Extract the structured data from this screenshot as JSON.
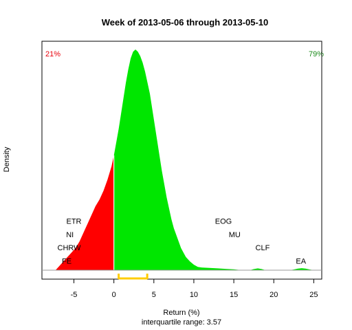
{
  "chart_data": {
    "type": "area",
    "title": "Week of 2013-05-06 through 2013-05-10",
    "xlabel": "Return (%)",
    "ylabel": "Density",
    "subtitle": "interquartile range: 3.57",
    "xlim": [
      -9,
      26
    ],
    "ylim": [
      0,
      1
    ],
    "xticks": [
      -5,
      0,
      5,
      10,
      15,
      20,
      25
    ],
    "xtick_labels": [
      "-5",
      "0",
      "5",
      "10",
      "15",
      "20",
      "25"
    ],
    "split_x": 0,
    "iqr": [
      0.6,
      4.17
    ],
    "grid": false,
    "colors": {
      "negative": "#ff0000",
      "positive": "#00e600",
      "iqr": "#ffcc00",
      "negative_text": "#e8000b",
      "positive_text": "#1a8a1a"
    },
    "percent_negative": "21%",
    "percent_positive": "79%",
    "density": {
      "x": [
        -7.3,
        -6.8,
        -6.3,
        -5.8,
        -5.3,
        -4.8,
        -4.3,
        -3.8,
        -3.3,
        -2.8,
        -2.3,
        -1.8,
        -1.3,
        -0.8,
        -0.3,
        0,
        0.3,
        0.6,
        0.9,
        1.2,
        1.5,
        1.8,
        2.1,
        2.4,
        2.7,
        3.0,
        3.3,
        3.6,
        3.9,
        4.2,
        4.5,
        4.8,
        5.1,
        5.4,
        5.7,
        6.0,
        6.3,
        6.6,
        6.9,
        7.2,
        7.5,
        7.8,
        8.1,
        8.4,
        8.7,
        9.0,
        9.5,
        10.0,
        10.5,
        11.0,
        12.0,
        13.0,
        14.0,
        15.0,
        15.5,
        16.0,
        17.0,
        17.5,
        18.0,
        18.5,
        19.0,
        20.0,
        21.0,
        22.0,
        22.5,
        23.0,
        23.5,
        24.0,
        24.5,
        25.0
      ],
      "y": [
        0.0,
        0.02,
        0.04,
        0.06,
        0.08,
        0.1,
        0.13,
        0.17,
        0.21,
        0.25,
        0.29,
        0.32,
        0.36,
        0.41,
        0.47,
        0.52,
        0.58,
        0.64,
        0.71,
        0.78,
        0.85,
        0.91,
        0.96,
        0.99,
        1.0,
        0.99,
        0.97,
        0.94,
        0.9,
        0.85,
        0.8,
        0.73,
        0.66,
        0.59,
        0.52,
        0.45,
        0.39,
        0.33,
        0.28,
        0.23,
        0.19,
        0.16,
        0.13,
        0.1,
        0.08,
        0.06,
        0.04,
        0.025,
        0.015,
        0.012,
        0.01,
        0.008,
        0.006,
        0.004,
        0.002,
        0.0,
        0.0,
        0.005,
        0.008,
        0.005,
        0.0,
        0.0,
        0.0,
        0.0,
        0.003,
        0.007,
        0.009,
        0.007,
        0.003,
        0.0
      ]
    },
    "annotations": [
      {
        "text": "ETR",
        "x": -5.0,
        "y": 0.21
      },
      {
        "text": "NI",
        "x": -5.5,
        "y": 0.15
      },
      {
        "text": "CHRW",
        "x": -5.6,
        "y": 0.09
      },
      {
        "text": "FE",
        "x": -5.9,
        "y": 0.03
      },
      {
        "text": "EOG",
        "x": 13.7,
        "y": 0.21
      },
      {
        "text": "MU",
        "x": 15.1,
        "y": 0.15
      },
      {
        "text": "CLF",
        "x": 18.6,
        "y": 0.09
      },
      {
        "text": "EA",
        "x": 23.4,
        "y": 0.03
      }
    ]
  }
}
